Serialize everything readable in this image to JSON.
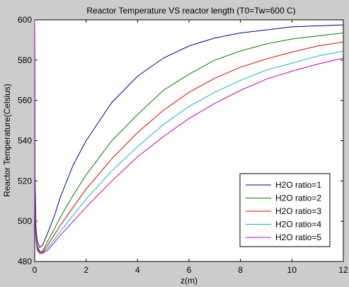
{
  "chart_data": {
    "type": "line",
    "title": "Reactor Temperature  VS reactor length (T0=Tw=600 C)",
    "xlabel": "z(m)",
    "ylabel": "Reactor Temperature(Celsius)",
    "xlim": [
      0,
      12
    ],
    "ylim": [
      480,
      600
    ],
    "xticks": [
      0,
      2,
      4,
      6,
      8,
      10,
      12
    ],
    "yticks": [
      480,
      500,
      520,
      540,
      560,
      580,
      600
    ],
    "grid": false,
    "legend_position": "bottom-right",
    "series": [
      {
        "name": "H2O ratio=1",
        "color": "#00008b",
        "points": [
          [
            0,
            600
          ],
          [
            0.01,
            525
          ],
          [
            0.05,
            497
          ],
          [
            0.1,
            490
          ],
          [
            0.2,
            487
          ],
          [
            0.3,
            488
          ],
          [
            0.5,
            494
          ],
          [
            0.8,
            504
          ],
          [
            1,
            512
          ],
          [
            1.5,
            528
          ],
          [
            2,
            540
          ],
          [
            3,
            559
          ],
          [
            4,
            572
          ],
          [
            5,
            581
          ],
          [
            6,
            587
          ],
          [
            7,
            591
          ],
          [
            8,
            593.5
          ],
          [
            9,
            595
          ],
          [
            10,
            596.5
          ],
          [
            11,
            597
          ],
          [
            12,
            597.5
          ]
        ]
      },
      {
        "name": "H2O ratio=2",
        "color": "#007f00",
        "points": [
          [
            0,
            600
          ],
          [
            0.01,
            511
          ],
          [
            0.05,
            495
          ],
          [
            0.1,
            488
          ],
          [
            0.2,
            485
          ],
          [
            0.3,
            485
          ],
          [
            0.5,
            490
          ],
          [
            0.8,
            497
          ],
          [
            1,
            502
          ],
          [
            1.5,
            513
          ],
          [
            2,
            523
          ],
          [
            3,
            540
          ],
          [
            4,
            553
          ],
          [
            5,
            565
          ],
          [
            6,
            573
          ],
          [
            7,
            580
          ],
          [
            8,
            584.5
          ],
          [
            9,
            588
          ],
          [
            10,
            590.5
          ],
          [
            11,
            592
          ],
          [
            12,
            593.5
          ]
        ]
      },
      {
        "name": "H2O ratio=3",
        "color": "#e00000",
        "points": [
          [
            0,
            600
          ],
          [
            0.01,
            508
          ],
          [
            0.05,
            494
          ],
          [
            0.1,
            487
          ],
          [
            0.2,
            484.5
          ],
          [
            0.3,
            484.5
          ],
          [
            0.5,
            488
          ],
          [
            0.8,
            494
          ],
          [
            1,
            498
          ],
          [
            1.5,
            507
          ],
          [
            2,
            516
          ],
          [
            3,
            531
          ],
          [
            4,
            544
          ],
          [
            5,
            555
          ],
          [
            6,
            564
          ],
          [
            7,
            571
          ],
          [
            8,
            576.5
          ],
          [
            9,
            580.5
          ],
          [
            10,
            584
          ],
          [
            11,
            587
          ],
          [
            12,
            589
          ]
        ]
      },
      {
        "name": "H2O ratio=4",
        "color": "#00bfbf",
        "points": [
          [
            0,
            600
          ],
          [
            0.01,
            505
          ],
          [
            0.05,
            492
          ],
          [
            0.1,
            486
          ],
          [
            0.2,
            484
          ],
          [
            0.3,
            484
          ],
          [
            0.5,
            486.5
          ],
          [
            0.8,
            491.5
          ],
          [
            1,
            495
          ],
          [
            1.5,
            503
          ],
          [
            2,
            511
          ],
          [
            3,
            525
          ],
          [
            4,
            537
          ],
          [
            5,
            548
          ],
          [
            6,
            557
          ],
          [
            7,
            564
          ],
          [
            8,
            570
          ],
          [
            9,
            575
          ],
          [
            10,
            578.5
          ],
          [
            11,
            582
          ],
          [
            12,
            584.5
          ]
        ]
      },
      {
        "name": "H2O ratio=5",
        "color": "#bf00bf",
        "points": [
          [
            0,
            600
          ],
          [
            0.01,
            502
          ],
          [
            0.05,
            491
          ],
          [
            0.1,
            485.5
          ],
          [
            0.2,
            484
          ],
          [
            0.3,
            484
          ],
          [
            0.5,
            485.5
          ],
          [
            0.8,
            490
          ],
          [
            1,
            493
          ],
          [
            1.5,
            500
          ],
          [
            2,
            507
          ],
          [
            3,
            520
          ],
          [
            4,
            532
          ],
          [
            5,
            542
          ],
          [
            6,
            551
          ],
          [
            7,
            558.5
          ],
          [
            8,
            565
          ],
          [
            9,
            570.5
          ],
          [
            10,
            574.5
          ],
          [
            11,
            578
          ],
          [
            12,
            581
          ]
        ]
      }
    ]
  }
}
